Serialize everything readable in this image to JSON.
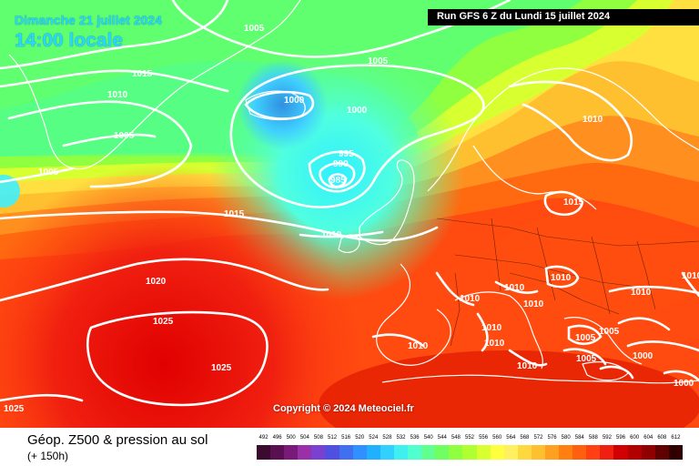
{
  "header": {
    "date": "Dimanche 21 juillet 2024",
    "time": "14:00 locale",
    "run": "Run GFS 6 Z du Lundi 15 juillet 2024"
  },
  "copyright": "Copyright © 2024 Meteociel.fr",
  "legend": {
    "title": "Géop. Z500 & pression au sol",
    "subtitle": "(+ 150h)",
    "ticks": [
      "492",
      "496",
      "500",
      "504",
      "508",
      "512",
      "516",
      "520",
      "524",
      "528",
      "532",
      "536",
      "540",
      "544",
      "548",
      "552",
      "556",
      "560",
      "564",
      "568",
      "572",
      "576",
      "580",
      "584",
      "588",
      "592",
      "596",
      "600",
      "604",
      "608",
      "612"
    ],
    "colors": [
      "#3a0a2f",
      "#5a1050",
      "#7a1a78",
      "#9a30a8",
      "#7a40d0",
      "#5050e0",
      "#4070f0",
      "#3090ff",
      "#20b0ff",
      "#30d0ff",
      "#40f0f0",
      "#50ffd0",
      "#60ff90",
      "#70ff60",
      "#90ff40",
      "#b0ff30",
      "#d8ff30",
      "#ffff40",
      "#fff060",
      "#ffd840",
      "#ffc030",
      "#ffa020",
      "#ff8010",
      "#ff6010",
      "#ff4010",
      "#f02010",
      "#d00000",
      "#b00000",
      "#900000",
      "#600000",
      "#300000"
    ]
  },
  "isobar_labels": [
    "1005",
    "1015",
    "1010",
    "1005",
    "1000",
    "1000",
    "1005",
    "1005",
    "995",
    "990",
    "985",
    "1015",
    "1010",
    "1010",
    "1010",
    "1015",
    "1020",
    "1025",
    "1025",
    "1025",
    "1010",
    "1010",
    "1010",
    "1010",
    "1010",
    "1005",
    "1000",
    "1005",
    "1005",
    "1010",
    "1010",
    "1000",
    "1010",
    "1010"
  ]
}
